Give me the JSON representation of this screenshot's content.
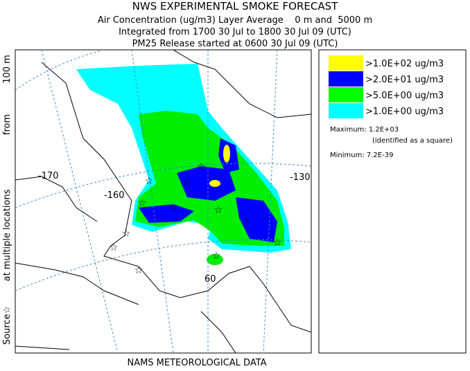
{
  "header": {
    "title": "NWS EXPERIMENTAL SMOKE FORECAST",
    "subtitle_lines": [
      "Air Concentration (ug/m3) Layer Average    0 m and  5000 m",
      "Integrated from 1700 30 Jul to 1800 30 Jul 09 (UTC)",
      "PM25 Release started at 0600 30 Jul 09 (UTC)"
    ]
  },
  "side_label": {
    "parts": [
      "Source☆",
      "at multiple locations",
      "from",
      "100 m"
    ]
  },
  "map": {
    "labels": [
      "-170",
      "-160",
      "-130",
      "60"
    ]
  },
  "legend": {
    "items": [
      {
        "label": ">1.0E+02 ug/m3",
        "color": "#ffff00"
      },
      {
        "label": ">2.0E+01 ug/m3",
        "color": "#0000ff"
      },
      {
        "label": ">5.0E+00 ug/m3",
        "color": "#00ff00"
      },
      {
        "label": ">1.0E+00 ug/m3",
        "color": "#00ffff"
      }
    ],
    "maximum": "Maximum: 1.2E+03",
    "maximum_note": "(identified as a square)",
    "minimum": "Minimum: 7.2E-39"
  },
  "footer": {
    "text": "NAMS METEOROLOGICAL DATA"
  }
}
